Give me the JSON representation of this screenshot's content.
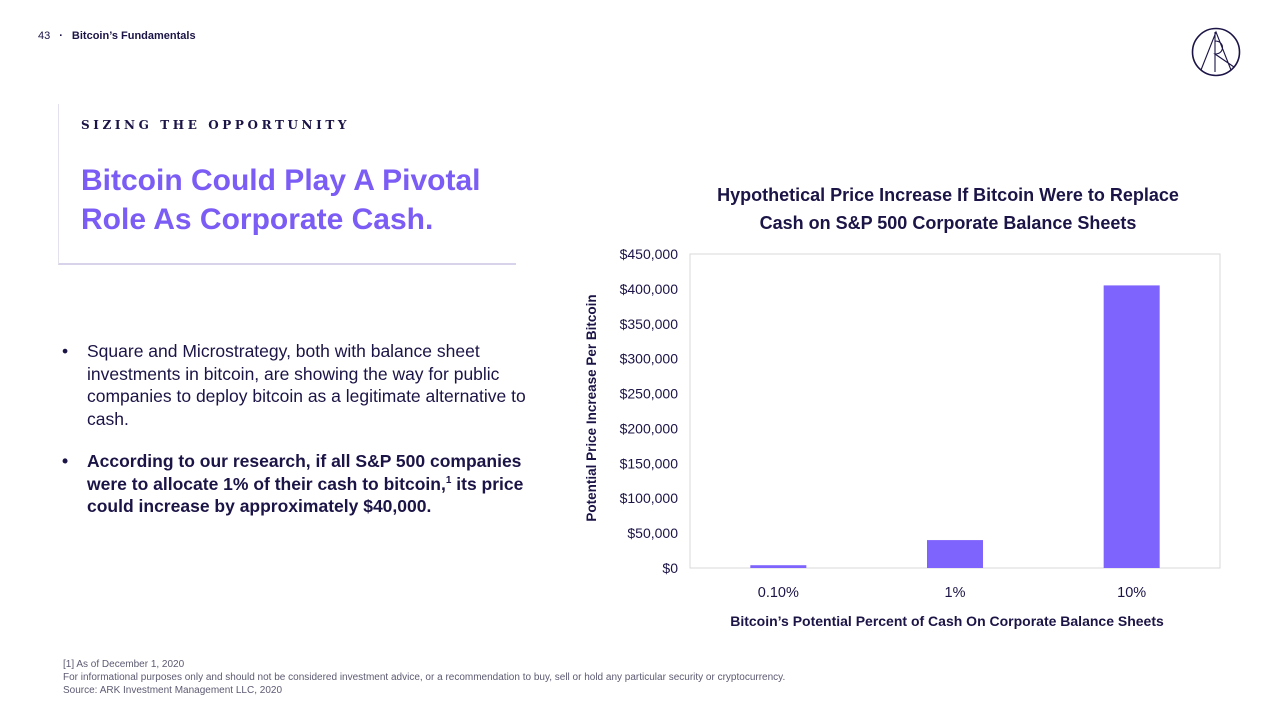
{
  "header": {
    "page_number": "43",
    "separator": "·",
    "section": "Bitcoin’s Fundamentals"
  },
  "logo": {
    "icon": "ark-logo-icon"
  },
  "title_block": {
    "eyebrow": "SIZING THE OPPORTUNITY",
    "headline": "Bitcoin Could Play A Pivotal Role As Corporate Cash."
  },
  "bullets": [
    {
      "text": "Square and Microstrategy, both with balance sheet investments in bitcoin, are showing the way for public companies to deploy bitcoin as a legitimate alternative to cash."
    },
    {
      "text_before": "According to our research, if all S&P 500 companies were to allocate 1% of their cash to bitcoin,",
      "footnote_ref": "1",
      "text_after": " its price could increase by approximately $40,000."
    }
  ],
  "colors": {
    "accent": "#7b5cf5",
    "bar": "#7f63fd",
    "text": "#1b1446",
    "axis": "#d9d9d9"
  },
  "chart_data": {
    "type": "bar",
    "title_lines": [
      "Hypothetical Price Increase If Bitcoin Were to Replace",
      "Cash on S&P 500 Corporate Balance Sheets"
    ],
    "categories": [
      "0.10%",
      "1%",
      "10%"
    ],
    "values": [
      4000,
      40000,
      405000
    ],
    "ylim": [
      0,
      450000
    ],
    "yticks": [
      0,
      50000,
      100000,
      150000,
      200000,
      250000,
      300000,
      350000,
      400000,
      450000
    ],
    "ytick_labels": [
      "$0",
      "$50,000",
      "$100,000",
      "$150,000",
      "$200,000",
      "$250,000",
      "$300,000",
      "$350,000",
      "$400,000",
      "$450,000"
    ],
    "xlabel": "Bitcoin’s Potential Percent of Cash On Corporate Balance Sheets",
    "ylabel": "Potential Price Increase Per Bitcoin",
    "grid": false,
    "legend": "none"
  },
  "footnotes": {
    "ref": "[1] As of December 1, 2020",
    "disclaimer": "For informational purposes only and should not be considered investment advice, or a recommendation to buy, sell or hold any particular security or cryptocurrency.",
    "source": "Source: ARK Investment Management LLC, 2020"
  }
}
